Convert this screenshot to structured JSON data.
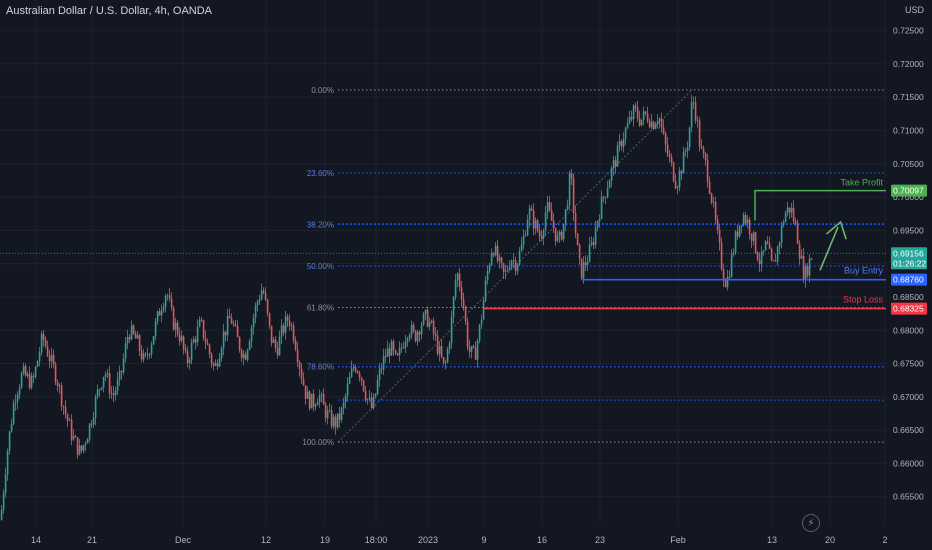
{
  "title": "Australian Dollar / U.S. Dollar, 4h, OANDA",
  "currency": "USD",
  "colors": {
    "background": "#131722",
    "up": "#26a69a",
    "down": "#ef5350",
    "fib_line": "#8a8f9c",
    "fib_blue": "#2962ff",
    "buy_line": "#2962ff",
    "stop_line": "#f23645",
    "tp_line": "#4caf50"
  },
  "icons": {
    "bottom_logo": "lightning-bolt-icon"
  },
  "chart_data": {
    "type": "candlestick",
    "symbol": "AUDUSD",
    "timeframe": "4h",
    "ylim": [
      0.6515,
      0.7275
    ],
    "y_ticks": [
      "0.72500",
      "0.72000",
      "0.71500",
      "0.71000",
      "0.70500",
      "0.70000",
      "0.69500",
      "0.69000",
      "0.68500",
      "0.68000",
      "0.67500",
      "0.67000",
      "0.66500",
      "0.66000",
      "0.65500"
    ],
    "x_ticks": [
      "14",
      "21",
      "Dec",
      "12",
      "19",
      "18:00",
      "2023",
      "9",
      "16",
      "23",
      "Feb",
      "13",
      "20",
      "2"
    ],
    "path": [
      [
        0,
        0.6515
      ],
      [
        6,
        0.661
      ],
      [
        14,
        0.67
      ],
      [
        22,
        0.6735
      ],
      [
        32,
        0.672
      ],
      [
        42,
        0.679
      ],
      [
        50,
        0.6755
      ],
      [
        56,
        0.673
      ],
      [
        64,
        0.668
      ],
      [
        72,
        0.664
      ],
      [
        80,
        0.6615
      ],
      [
        88,
        0.665
      ],
      [
        96,
        0.67
      ],
      [
        104,
        0.674
      ],
      [
        112,
        0.67
      ],
      [
        120,
        0.673
      ],
      [
        128,
        0.68
      ],
      [
        136,
        0.6785
      ],
      [
        144,
        0.675
      ],
      [
        152,
        0.679
      ],
      [
        160,
        0.6835
      ],
      [
        166,
        0.686
      ],
      [
        172,
        0.6815
      ],
      [
        180,
        0.679
      ],
      [
        186,
        0.675
      ],
      [
        192,
        0.678
      ],
      [
        200,
        0.681
      ],
      [
        208,
        0.677
      ],
      [
        214,
        0.674
      ],
      [
        222,
        0.679
      ],
      [
        230,
        0.682
      ],
      [
        238,
        0.678
      ],
      [
        244,
        0.676
      ],
      [
        250,
        0.68
      ],
      [
        256,
        0.684
      ],
      [
        262,
        0.6865
      ],
      [
        266,
        0.683
      ],
      [
        270,
        0.679
      ],
      [
        276,
        0.677
      ],
      [
        282,
        0.68
      ],
      [
        288,
        0.682
      ],
      [
        294,
        0.679
      ],
      [
        300,
        0.674
      ],
      [
        306,
        0.67
      ],
      [
        312,
        0.669
      ],
      [
        318,
        0.6705
      ],
      [
        324,
        0.668
      ],
      [
        330,
        0.6665
      ],
      [
        336,
        0.666
      ],
      [
        342,
        0.668
      ],
      [
        348,
        0.672
      ],
      [
        354,
        0.675
      ],
      [
        360,
        0.6735
      ],
      [
        366,
        0.67
      ],
      [
        372,
        0.668
      ],
      [
        378,
        0.673
      ],
      [
        384,
        0.676
      ],
      [
        390,
        0.6775
      ],
      [
        396,
        0.675
      ],
      [
        402,
        0.678
      ],
      [
        408,
        0.6805
      ],
      [
        414,
        0.679
      ],
      [
        420,
        0.681
      ],
      [
        426,
        0.682
      ],
      [
        432,
        0.68
      ],
      [
        438,
        0.677
      ],
      [
        444,
        0.674
      ],
      [
        450,
        0.68
      ],
      [
        456,
        0.689
      ],
      [
        462,
        0.685
      ],
      [
        468,
        0.677
      ],
      [
        474,
        0.676
      ],
      [
        480,
        0.681
      ],
      [
        486,
        0.688
      ],
      [
        492,
        0.693
      ],
      [
        498,
        0.69
      ],
      [
        504,
        0.688
      ],
      [
        510,
        0.691
      ],
      [
        516,
        0.69
      ],
      [
        522,
        0.693
      ],
      [
        528,
        0.698
      ],
      [
        534,
        0.696
      ],
      [
        540,
        0.694
      ],
      [
        546,
        0.6985
      ],
      [
        552,
        0.696
      ],
      [
        558,
        0.693
      ],
      [
        564,
        0.6965
      ],
      [
        570,
        0.7035
      ],
      [
        576,
        0.693
      ],
      [
        580,
        0.6885
      ],
      [
        586,
        0.6905
      ],
      [
        592,
        0.693
      ],
      [
        598,
        0.6975
      ],
      [
        604,
        0.7005
      ],
      [
        610,
        0.7035
      ],
      [
        616,
        0.706
      ],
      [
        622,
        0.709
      ],
      [
        628,
        0.711
      ],
      [
        634,
        0.713
      ],
      [
        640,
        0.7115
      ],
      [
        646,
        0.7125
      ],
      [
        652,
        0.711
      ],
      [
        658,
        0.7125
      ],
      [
        664,
        0.708
      ],
      [
        670,
        0.705
      ],
      [
        676,
        0.702
      ],
      [
        682,
        0.705
      ],
      [
        688,
        0.709
      ],
      [
        692,
        0.715
      ],
      [
        696,
        0.712
      ],
      [
        700,
        0.707
      ],
      [
        706,
        0.7045
      ],
      [
        712,
        0.699
      ],
      [
        718,
        0.693
      ],
      [
        722,
        0.689
      ],
      [
        726,
        0.687
      ],
      [
        730,
        0.69
      ],
      [
        736,
        0.6945
      ],
      [
        742,
        0.6975
      ],
      [
        748,
        0.696
      ],
      [
        754,
        0.693
      ],
      [
        760,
        0.69
      ],
      [
        766,
        0.693
      ],
      [
        772,
        0.689
      ],
      [
        778,
        0.693
      ],
      [
        784,
        0.6975
      ],
      [
        790,
        0.6985
      ],
      [
        796,
        0.695
      ],
      [
        800,
        0.691
      ],
      [
        804,
        0.688
      ],
      [
        808,
        0.69
      ],
      [
        812,
        0.6915
      ]
    ],
    "last_candle_x": 812,
    "fib": {
      "high": 0.7161,
      "low": 0.6632,
      "x_start": 338,
      "x_end": 886,
      "levels": [
        {
          "label": "0.00%",
          "ratio": 0.0,
          "color": "gray"
        },
        {
          "label": "23.60%",
          "ratio": 0.236,
          "color": "blue"
        },
        {
          "label": "38.20%",
          "ratio": 0.382,
          "color": "blue"
        },
        {
          "label": "50.00%",
          "ratio": 0.5,
          "color": "blue"
        },
        {
          "label": "61.80%",
          "ratio": 0.618,
          "color": "gray"
        },
        {
          "label": "78.60%",
          "ratio": 0.786,
          "color": "blue"
        },
        {
          "label": "100.00%",
          "ratio": 1.0,
          "color": "gray"
        }
      ],
      "extra_dotted": [
        0.696,
        0.6745,
        0.6695
      ]
    },
    "trade_levels": {
      "take_profit": {
        "label": "Take Profit",
        "value": 0.70097,
        "tag": "0.70097",
        "x_start": 755
      },
      "buy_entry": {
        "label": "Buy Entry",
        "value": 0.6876,
        "tag": "0.68760",
        "x_start": 582
      },
      "stop_loss": {
        "label": "Stop Loss",
        "value": 0.68325,
        "tag": "0.68325",
        "x_start": 484
      }
    },
    "current": {
      "value": 0.69156,
      "tag": "0.69156",
      "countdown": "01:26:22"
    },
    "arrow": {
      "from": [
        820,
        0.689
      ],
      "to": [
        838,
        0.6955
      ]
    }
  }
}
